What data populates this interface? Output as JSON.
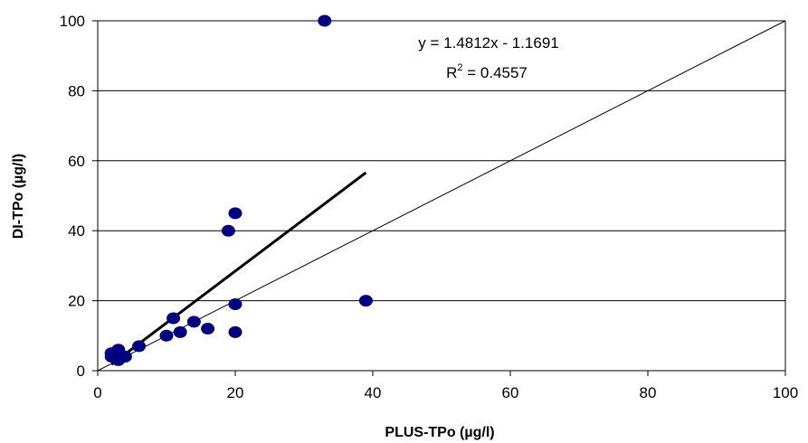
{
  "chart_data": {
    "type": "scatter",
    "title": "",
    "xlabel": "PLUS-TPo (µg/l)",
    "ylabel": "DI-TPo (µg/l)",
    "xlim": [
      0,
      100
    ],
    "ylim": [
      0,
      100
    ],
    "x_ticks": [
      0,
      20,
      40,
      60,
      80,
      100
    ],
    "y_ticks": [
      0,
      20,
      40,
      60,
      80,
      100
    ],
    "grid": "horizontal",
    "marker_color": "#000080",
    "series": [
      {
        "points": [
          {
            "x": 2,
            "y": 4
          },
          {
            "x": 2,
            "y": 5
          },
          {
            "x": 3,
            "y": 3
          },
          {
            "x": 3,
            "y": 6
          },
          {
            "x": 3,
            "y": 5
          },
          {
            "x": 4,
            "y": 4
          },
          {
            "x": 6,
            "y": 7
          },
          {
            "x": 10,
            "y": 10
          },
          {
            "x": 11,
            "y": 15
          },
          {
            "x": 12,
            "y": 11
          },
          {
            "x": 14,
            "y": 14
          },
          {
            "x": 16,
            "y": 12
          },
          {
            "x": 19,
            "y": 40
          },
          {
            "x": 20,
            "y": 45
          },
          {
            "x": 20,
            "y": 19
          },
          {
            "x": 20,
            "y": 11
          },
          {
            "x": 33,
            "y": 100
          },
          {
            "x": 39,
            "y": 20
          }
        ]
      }
    ],
    "lines": [
      {
        "kind": "regression",
        "slope": 1.4812,
        "intercept": -1.1691,
        "x_range": [
          2,
          39
        ]
      },
      {
        "kind": "one-to-one",
        "slope": 1,
        "intercept": 0,
        "x_range": [
          0,
          100
        ]
      }
    ],
    "annotations": {
      "equation": "y = 1.4812x - 1.1691",
      "r2_prefix": "R",
      "r2_sup": "2",
      "r2_suffix": " = 0.4557"
    }
  }
}
